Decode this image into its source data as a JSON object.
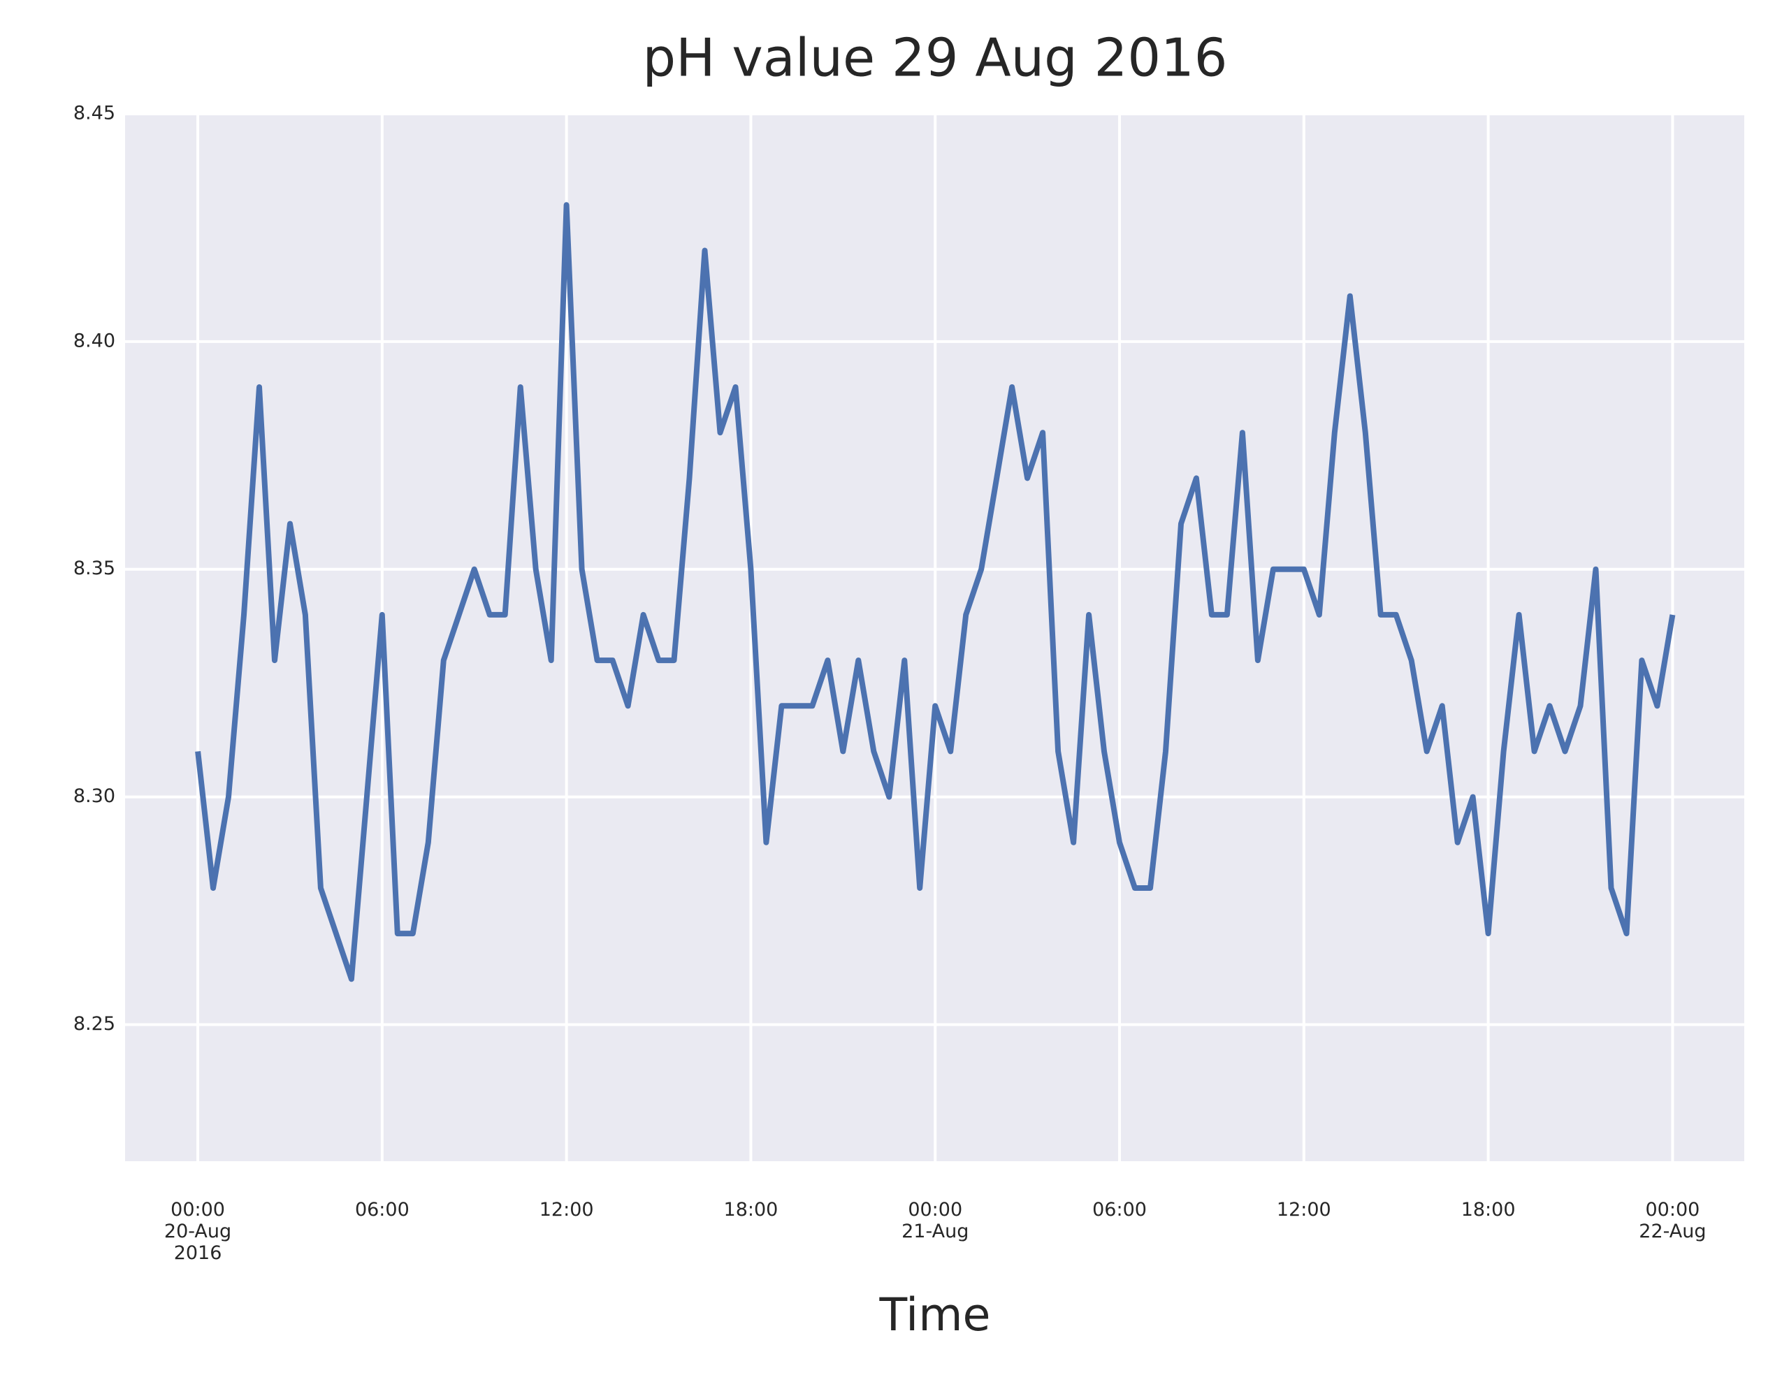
{
  "chart_data": {
    "type": "line",
    "title": "pH value 29 Aug 2016",
    "xlabel": "Time",
    "xlim": [
      "2016-08-19 21:38",
      "2016-08-22 02:20"
    ],
    "ylim": [
      8.22,
      8.45
    ],
    "xticks": [
      {
        "value": "2016-08-20 00:00",
        "label": "00:00\n20-Aug\n2016"
      },
      {
        "value": "2016-08-20 06:00",
        "label": "06:00"
      },
      {
        "value": "2016-08-20 12:00",
        "label": "12:00"
      },
      {
        "value": "2016-08-20 18:00",
        "label": "18:00"
      },
      {
        "value": "2016-08-21 00:00",
        "label": "00:00\n21-Aug"
      },
      {
        "value": "2016-08-21 06:00",
        "label": "06:00"
      },
      {
        "value": "2016-08-21 12:00",
        "label": "12:00"
      },
      {
        "value": "2016-08-21 18:00",
        "label": "18:00"
      },
      {
        "value": "2016-08-22 00:00",
        "label": "00:00\n22-Aug"
      }
    ],
    "yticks": [
      8.25,
      {
        "value": 8.3,
        "label": "8.30"
      },
      8.35,
      {
        "value": 8.4,
        "label": "8.40"
      },
      8.45
    ],
    "grid": true,
    "background": "#eaeaf2",
    "x": [
      "2016-08-20 00:00",
      "2016-08-20 00:30",
      "2016-08-20 01:00",
      "2016-08-20 01:30",
      "2016-08-20 02:00",
      "2016-08-20 02:30",
      "2016-08-20 03:00",
      "2016-08-20 03:30",
      "2016-08-20 04:00",
      "2016-08-20 04:30",
      "2016-08-20 05:00",
      "2016-08-20 05:30",
      "2016-08-20 06:00",
      "2016-08-20 06:30",
      "2016-08-20 07:00",
      "2016-08-20 07:30",
      "2016-08-20 08:00",
      "2016-08-20 08:30",
      "2016-08-20 09:00",
      "2016-08-20 09:30",
      "2016-08-20 10:00",
      "2016-08-20 10:30",
      "2016-08-20 11:00",
      "2016-08-20 11:30",
      "2016-08-20 12:00",
      "2016-08-20 12:30",
      "2016-08-20 13:00",
      "2016-08-20 13:30",
      "2016-08-20 14:00",
      "2016-08-20 14:30",
      "2016-08-20 15:00",
      "2016-08-20 15:30",
      "2016-08-20 16:00",
      "2016-08-20 16:30",
      "2016-08-20 17:00",
      "2016-08-20 17:30",
      "2016-08-20 18:00",
      "2016-08-20 18:30",
      "2016-08-20 19:00",
      "2016-08-20 19:30",
      "2016-08-20 20:00",
      "2016-08-20 20:30",
      "2016-08-20 21:00",
      "2016-08-20 21:30",
      "2016-08-20 22:00",
      "2016-08-20 22:30",
      "2016-08-20 23:00",
      "2016-08-20 23:30",
      "2016-08-21 00:00",
      "2016-08-21 00:30",
      "2016-08-21 01:00",
      "2016-08-21 01:30",
      "2016-08-21 02:00",
      "2016-08-21 02:30",
      "2016-08-21 03:00",
      "2016-08-21 03:30",
      "2016-08-21 04:00",
      "2016-08-21 04:30",
      "2016-08-21 05:00",
      "2016-08-21 05:30",
      "2016-08-21 06:00",
      "2016-08-21 06:30",
      "2016-08-21 07:00",
      "2016-08-21 07:30",
      "2016-08-21 08:00",
      "2016-08-21 08:30",
      "2016-08-21 09:00",
      "2016-08-21 09:30",
      "2016-08-21 10:00",
      "2016-08-21 10:30",
      "2016-08-21 11:00",
      "2016-08-21 11:30",
      "2016-08-21 12:00",
      "2016-08-21 12:30",
      "2016-08-21 13:00",
      "2016-08-21 13:30",
      "2016-08-21 14:00",
      "2016-08-21 14:30",
      "2016-08-21 15:00",
      "2016-08-21 15:30",
      "2016-08-21 16:00",
      "2016-08-21 16:30",
      "2016-08-21 17:00",
      "2016-08-21 17:30",
      "2016-08-21 18:00",
      "2016-08-21 18:30",
      "2016-08-21 19:00",
      "2016-08-21 19:30",
      "2016-08-21 20:00",
      "2016-08-21 20:30",
      "2016-08-21 21:00",
      "2016-08-21 21:30",
      "2016-08-21 22:00",
      "2016-08-21 22:30",
      "2016-08-21 23:00",
      "2016-08-21 23:30",
      "2016-08-22 00:00"
    ],
    "values": [
      8.31,
      8.28,
      8.3,
      8.34,
      8.39,
      8.33,
      8.36,
      8.34,
      8.28,
      8.27,
      8.26,
      8.3,
      8.34,
      8.27,
      8.27,
      8.29,
      8.33,
      8.34,
      8.35,
      8.34,
      8.34,
      8.39,
      8.35,
      8.33,
      8.43,
      8.35,
      8.33,
      8.33,
      8.32,
      8.34,
      8.33,
      8.33,
      8.37,
      8.42,
      8.38,
      8.39,
      8.35,
      8.29,
      8.32,
      8.32,
      8.32,
      8.33,
      8.31,
      8.33,
      8.31,
      8.3,
      8.33,
      8.28,
      8.32,
      8.31,
      8.34,
      8.35,
      8.37,
      8.39,
      8.37,
      8.38,
      8.31,
      8.29,
      8.34,
      8.31,
      8.29,
      8.28,
      8.28,
      8.31,
      8.36,
      8.37,
      8.34,
      8.34,
      8.38,
      8.33,
      8.35,
      8.35,
      8.35,
      8.34,
      8.38,
      8.41,
      8.38,
      8.34,
      8.34,
      8.33,
      8.31,
      8.32,
      8.29,
      8.3,
      8.27,
      8.31,
      8.34,
      8.31,
      8.32,
      8.31,
      8.32,
      8.35,
      8.28,
      8.27,
      8.33,
      8.32,
      8.34
    ],
    "color": "#4c72b0"
  }
}
